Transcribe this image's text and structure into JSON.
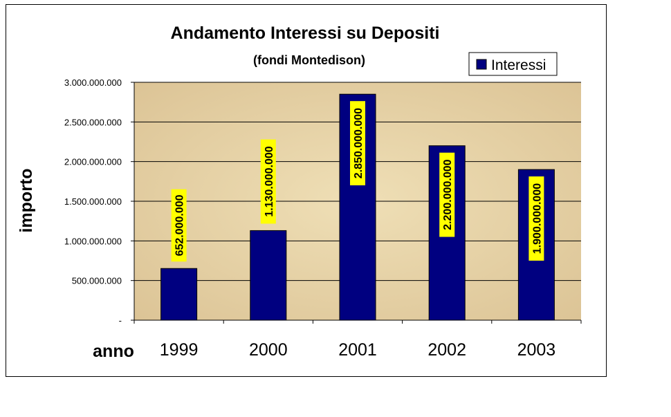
{
  "chart_data": {
    "type": "bar",
    "title": "Andamento Interessi su Depositi",
    "subtitle": "(fondi Montedison)",
    "xlabel": "anno",
    "ylabel": "importo",
    "categories": [
      "1999",
      "2000",
      "2001",
      "2002",
      "2003"
    ],
    "series": [
      {
        "name": "Interessi",
        "values": [
          652000000,
          1130000000,
          2850000000,
          2200000000,
          1900000000
        ],
        "labels": [
          "652.000.000",
          "1.130.000.000",
          "2.850.000.000",
          "2.200.000.000",
          "1.900.000.000"
        ]
      }
    ],
    "ylim": [
      0,
      3000000000
    ],
    "yticks": [
      {
        "value": 0,
        "label": "-"
      },
      {
        "value": 500000000,
        "label": "500.000.000"
      },
      {
        "value": 1000000000,
        "label": "1.000.000.000"
      },
      {
        "value": 1500000000,
        "label": "1.500.000.000"
      },
      {
        "value": 2000000000,
        "label": "2.000.000.000"
      },
      {
        "value": 2500000000,
        "label": "2.500.000.000"
      },
      {
        "value": 3000000000,
        "label": "3.000.000.000"
      }
    ],
    "grid": true,
    "legend_position": "top-right",
    "colors": {
      "bar": "#000080",
      "plot_background": "#e8d6a8",
      "data_label_background": "#ffff00"
    }
  }
}
